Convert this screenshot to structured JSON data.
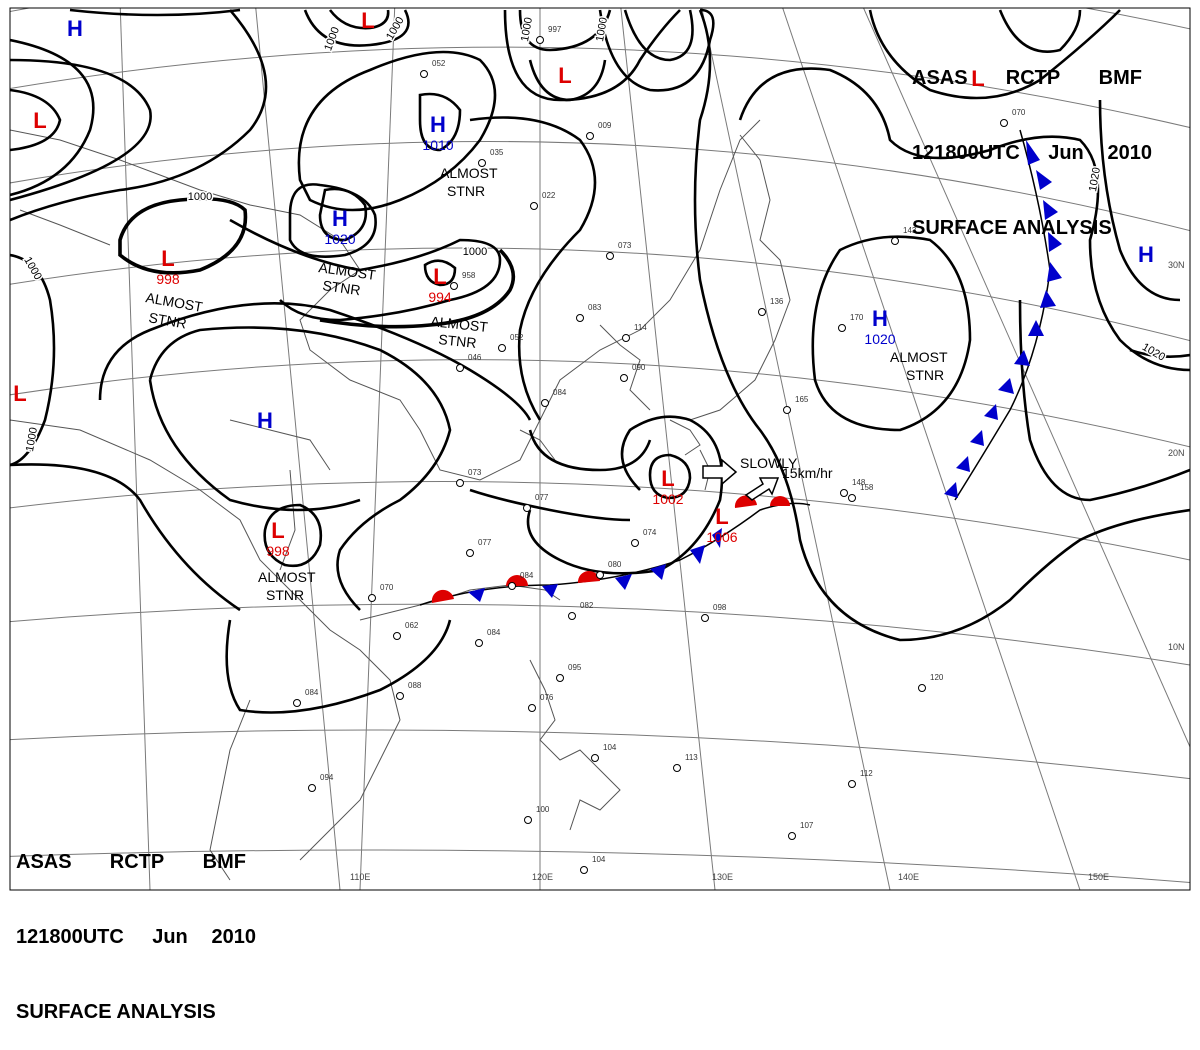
{
  "header_top": {
    "line1": [
      "ASAS",
      "RCTP",
      "BMF"
    ],
    "line2": [
      "121800UTC",
      "Jun",
      "2010"
    ],
    "line3": "SURFACE ANALYSIS"
  },
  "header_bottom": {
    "line1": [
      "ASAS",
      "RCTP",
      "BMF"
    ],
    "line2": [
      "121800UTC",
      "Jun",
      "2010"
    ],
    "line3": "SURFACE ANALYSIS"
  },
  "colors": {
    "high": "#0000cc",
    "low": "#dd0000",
    "isobar": "#000000",
    "grid": "#7a7a7a",
    "coast": "#555555"
  },
  "longitude_labels": [
    "110E",
    "120E",
    "130E",
    "140E",
    "150E"
  ],
  "latitude_labels": [
    "30N",
    "20N",
    "10N"
  ],
  "pressure_centers": [
    {
      "type": "H",
      "value": ""
    },
    {
      "type": "L",
      "value": ""
    },
    {
      "type": "L",
      "value": ""
    },
    {
      "type": "H",
      "value": "1010"
    },
    {
      "type": "H",
      "value": "1020"
    },
    {
      "type": "L",
      "value": "998"
    },
    {
      "type": "L",
      "value": "994"
    },
    {
      "type": "L",
      "value": ""
    },
    {
      "type": "L",
      "value": ""
    },
    {
      "type": "H",
      "value": ""
    },
    {
      "type": "L",
      "value": "998"
    },
    {
      "type": "L",
      "value": "1002"
    },
    {
      "type": "L",
      "value": "1006"
    },
    {
      "type": "H",
      "value": "1020"
    },
    {
      "type": "H",
      "value": ""
    },
    {
      "type": "L",
      "value": ""
    }
  ],
  "isobar_labels": [
    "1000",
    "1000",
    "1000",
    "1000",
    "1000",
    "1000",
    "1000",
    "1000",
    "1020",
    "1020"
  ],
  "annotations": {
    "almost_stnr_1": [
      "ALMOST",
      "STNR"
    ],
    "almost_stnr_2": [
      "ALMOST",
      "STNR"
    ],
    "almost_stnr_3": [
      "ALMOST",
      "STNR"
    ],
    "almost_stnr_4": [
      "ALMOST",
      "STNR"
    ],
    "almost_stnr_5": [
      "ALMOST",
      "STNR"
    ],
    "almost_stnr_6": [
      "ALMOST",
      "STNR"
    ],
    "slowly": "SLOWLY",
    "speed": "15km/hr"
  },
  "station_plots": [
    "997",
    "052",
    "035",
    "022",
    "009",
    "073",
    "083",
    "114",
    "090",
    "084",
    "077",
    "073",
    "046",
    "052",
    "958",
    "170",
    "143",
    "148",
    "165",
    "136",
    "070",
    "098",
    "120",
    "095",
    "076",
    "104",
    "113",
    "112",
    "107",
    "100",
    "104",
    "094",
    "084",
    "088",
    "062",
    "070",
    "082",
    "084",
    "074",
    "080",
    "077",
    "158",
    "084"
  ]
}
